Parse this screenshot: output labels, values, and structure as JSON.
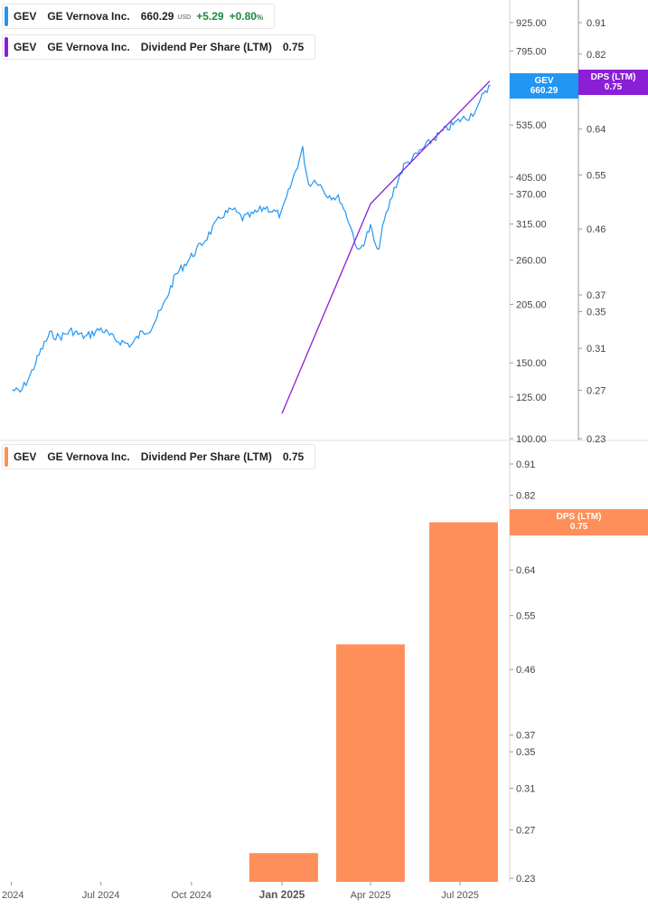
{
  "legend_price": {
    "ticker": "GEV",
    "company": "GE Vernova Inc.",
    "price": "660.29",
    "currency": "USD",
    "change": "+5.29",
    "change_pct": "+0.80",
    "pct_symbol": "%"
  },
  "legend_dps": {
    "ticker": "GEV",
    "company": "GE Vernova Inc.",
    "metric": "Dividend Per Share (LTM)",
    "value": "0.75"
  },
  "legend_dps_bottom": {
    "ticker": "GEV",
    "company": "GE Vernova Inc.",
    "metric": "Dividend Per Share (LTM)",
    "value": "0.75"
  },
  "tags": {
    "price_tag_ticker": "GEV",
    "price_tag_value": "660.29",
    "dps_tag_label": "DPS (LTM)",
    "dps_tag_value": "0.75",
    "dps_bottom_tag_label": "DPS (LTM)",
    "dps_bottom_tag_value": "0.75"
  },
  "colors": {
    "price_line": "#2196f3",
    "dps_line": "#8a1fd6",
    "bar": "#ff8f5a",
    "gain": "#1a8a3e"
  },
  "chart_data": [
    {
      "type": "line",
      "series": [
        {
          "name": "GEV",
          "scale": "log",
          "x": [
            "2024-04-02",
            "2024-04-10",
            "2024-04-20",
            "2024-05-01",
            "2024-05-10",
            "2024-05-20",
            "2024-06-01",
            "2024-06-15",
            "2024-07-01",
            "2024-07-15",
            "2024-08-01",
            "2024-08-10",
            "2024-08-20",
            "2024-09-01",
            "2024-09-15",
            "2024-10-01",
            "2024-10-15",
            "2024-11-01",
            "2024-11-12",
            "2024-11-22",
            "2024-12-01",
            "2024-12-15",
            "2024-12-31",
            "2025-01-15",
            "2025-01-22",
            "2025-01-28",
            "2025-02-05",
            "2025-02-15",
            "2025-03-01",
            "2025-03-10",
            "2025-03-20",
            "2025-04-01",
            "2025-04-08",
            "2025-04-15",
            "2025-04-25",
            "2025-05-05",
            "2025-05-15",
            "2025-06-01",
            "2025-06-15",
            "2025-07-01",
            "2025-07-10",
            "2025-07-20",
            "2025-07-25",
            "2025-08-01"
          ],
          "y": [
            130,
            128,
            140,
            160,
            175,
            172,
            178,
            172,
            180,
            170,
            165,
            175,
            180,
            200,
            240,
            265,
            290,
            330,
            340,
            325,
            330,
            345,
            330,
            420,
            470,
            390,
            400,
            370,
            360,
            320,
            270,
            310,
            270,
            320,
            380,
            430,
            450,
            490,
            520,
            550,
            560,
            590,
            640,
            660
          ]
        },
        {
          "name": "Dividend Per Share (LTM)",
          "scale": "log",
          "x": [
            "2025-01-01",
            "2025-04-01",
            "2025-07-31"
          ],
          "y": [
            0.25,
            0.5,
            0.75
          ]
        }
      ],
      "y_ticks_left": [
        925,
        795,
        535,
        405,
        370,
        315,
        260,
        205,
        150,
        125,
        100
      ],
      "y_ticks_right": [
        0.91,
        0.82,
        0.64,
        0.55,
        0.46,
        0.37,
        0.35,
        0.31,
        0.27,
        0.23
      ],
      "ylim_left": [
        100,
        1000
      ],
      "ylim_right": [
        0.23,
        0.95
      ]
    },
    {
      "type": "bar",
      "series": [
        {
          "name": "Dividend Per Share (LTM)",
          "x": [
            "2025-01-01",
            "2025-04-01",
            "2025-07-01"
          ],
          "values": [
            0.25,
            0.5,
            0.75
          ]
        }
      ],
      "y_ticks": [
        0.91,
        0.82,
        0.64,
        0.55,
        0.46,
        0.37,
        0.35,
        0.31,
        0.27,
        0.23
      ],
      "ylim": [
        0.23,
        0.95
      ],
      "x_tick_labels": [
        "2024",
        "Jul 2024",
        "Oct 2024",
        "Jan 2025",
        "Apr 2025",
        "Jul 2025"
      ],
      "x_tick_dates": [
        "2024-04-01",
        "2024-07-01",
        "2024-10-01",
        "2025-01-01",
        "2025-04-01",
        "2025-07-01"
      ]
    }
  ]
}
